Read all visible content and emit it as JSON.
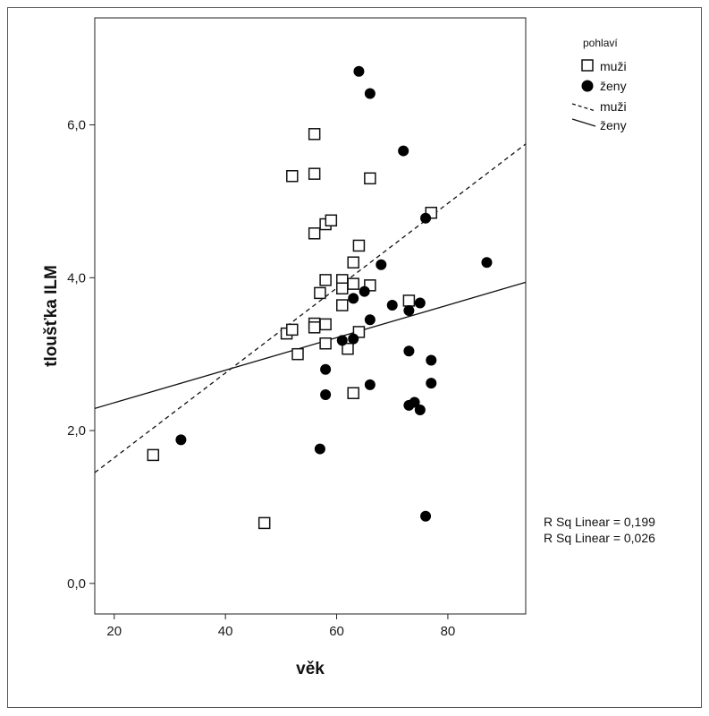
{
  "chart_data": {
    "type": "scatter",
    "xlabel": "věk",
    "ylabel": "tloušťka ILM",
    "xlim": [
      16.5,
      94
    ],
    "ylim": [
      -0.4,
      7.4
    ],
    "xticks": [
      20,
      40,
      60,
      80
    ],
    "yticks": [
      0,
      2,
      4,
      6
    ],
    "xtick_labels": [
      "20",
      "40",
      "60",
      "80"
    ],
    "ytick_labels": [
      "0,0",
      "2,0",
      "4,0",
      "6,0"
    ],
    "grid": false,
    "legend": {
      "title": "pohlaví",
      "placement": "outside-top-right",
      "entries": [
        {
          "label": "muži",
          "symbol": "open-square"
        },
        {
          "label": "ženy",
          "symbol": "filled-circle"
        },
        {
          "label": "muži",
          "symbol": "dashed-line"
        },
        {
          "label": "ženy",
          "symbol": "solid-line"
        }
      ]
    },
    "series": [
      {
        "name": "muži",
        "marker": "open-square",
        "points": [
          [
            27,
            1.68
          ],
          [
            47,
            0.79
          ],
          [
            51,
            3.27
          ],
          [
            52,
            3.32
          ],
          [
            52,
            5.33
          ],
          [
            53,
            3.0
          ],
          [
            56,
            5.88
          ],
          [
            56,
            5.36
          ],
          [
            56,
            4.58
          ],
          [
            56,
            3.4
          ],
          [
            56,
            3.35
          ],
          [
            57,
            3.8
          ],
          [
            58,
            4.7
          ],
          [
            58,
            3.97
          ],
          [
            58,
            3.39
          ],
          [
            58,
            3.14
          ],
          [
            59,
            4.75
          ],
          [
            61,
            3.97
          ],
          [
            61,
            3.86
          ],
          [
            61,
            3.64
          ],
          [
            62,
            3.07
          ],
          [
            63,
            4.2
          ],
          [
            63,
            3.92
          ],
          [
            63,
            2.49
          ],
          [
            64,
            4.42
          ],
          [
            64,
            3.29
          ],
          [
            66,
            5.3
          ],
          [
            66,
            3.9
          ],
          [
            73,
            3.7
          ],
          [
            77,
            4.85
          ]
        ]
      },
      {
        "name": "ženy",
        "marker": "filled-circle",
        "points": [
          [
            32,
            1.88
          ],
          [
            57,
            1.76
          ],
          [
            58,
            2.8
          ],
          [
            58,
            2.47
          ],
          [
            61,
            3.18
          ],
          [
            63,
            3.73
          ],
          [
            63,
            3.2
          ],
          [
            64,
            6.7
          ],
          [
            65,
            3.82
          ],
          [
            66,
            6.41
          ],
          [
            66,
            3.45
          ],
          [
            66,
            2.6
          ],
          [
            68,
            4.17
          ],
          [
            70,
            3.64
          ],
          [
            72,
            5.66
          ],
          [
            73,
            3.57
          ],
          [
            73,
            3.04
          ],
          [
            73,
            2.33
          ],
          [
            74,
            2.37
          ],
          [
            75,
            3.67
          ],
          [
            75,
            2.27
          ],
          [
            76,
            4.78
          ],
          [
            76,
            0.88
          ],
          [
            77,
            2.92
          ],
          [
            77,
            2.62
          ],
          [
            87,
            4.2
          ]
        ]
      }
    ],
    "fit_lines": [
      {
        "series": "muži",
        "style": "dashed",
        "x": [
          16.5,
          94
        ],
        "y": [
          1.45,
          5.75
        ]
      },
      {
        "series": "ženy",
        "style": "solid",
        "x": [
          16.5,
          94
        ],
        "y": [
          2.29,
          3.94
        ]
      }
    ],
    "annotations": [
      "R Sq Linear = 0,199",
      "R Sq Linear = 0,026"
    ]
  }
}
